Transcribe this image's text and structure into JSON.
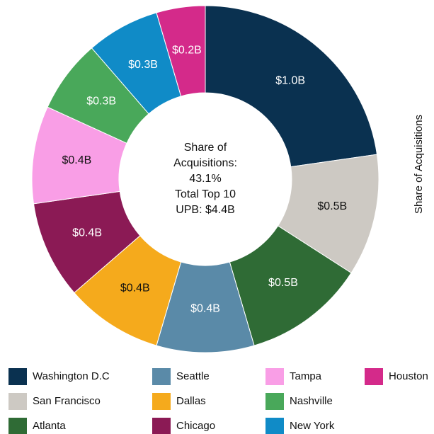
{
  "chart_data": {
    "type": "donut",
    "center_text": [
      "Share of",
      "Acquisitions:",
      "43.1%",
      "Total Top 10",
      "UPB: $4.4B"
    ],
    "y_label": "Share of Acquisitions",
    "categories": [
      "Washington D.C",
      "San Francisco",
      "Atlanta",
      "Seattle",
      "Dallas",
      "Chicago",
      "Tampa",
      "Nashville",
      "New York",
      "Houston"
    ],
    "values": [
      1.0,
      0.5,
      0.5,
      0.4,
      0.4,
      0.4,
      0.4,
      0.3,
      0.3,
      0.2
    ],
    "value_labels": [
      "$1.0B",
      "$0.5B",
      "$0.5B",
      "$0.4B",
      "$0.4B",
      "$0.4B",
      "$0.4B",
      "$0.3B",
      "$0.3B",
      "$0.2B"
    ],
    "colors": [
      "#0a3150",
      "#cdc9c3",
      "#2f6b35",
      "#5a8aa8",
      "#f5aa1c",
      "#8b1a55",
      "#f99ee6",
      "#49a85a",
      "#108bc7",
      "#d42a8a"
    ],
    "legend": "bottom"
  }
}
